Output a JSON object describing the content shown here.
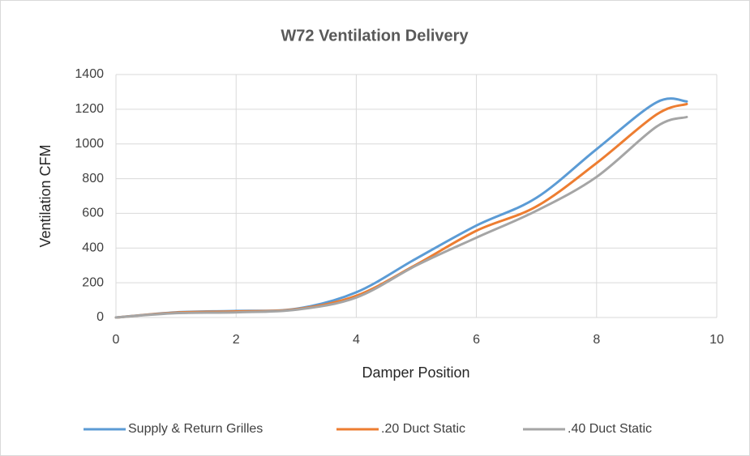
{
  "chart_data": {
    "type": "line",
    "title": "W72 Ventilation Delivery",
    "x_label": "Damper Position",
    "y_label": "Ventilation CFM",
    "x": [
      0,
      1,
      2,
      3,
      4,
      5,
      6,
      7,
      8,
      9,
      9.5
    ],
    "series": [
      {
        "name": "Supply & Return Grilles",
        "color": "#5b9bd5",
        "values": [
          0,
          30,
          38,
          50,
          145,
          340,
          530,
          690,
          970,
          1240,
          1245
        ]
      },
      {
        "name": ".20 Duct Static",
        "color": "#ed7d31",
        "values": [
          0,
          28,
          35,
          48,
          125,
          305,
          500,
          640,
          890,
          1170,
          1230
        ]
      },
      {
        "name": ".40 Duct Static",
        "color": "#a5a5a5",
        "values": [
          0,
          25,
          30,
          45,
          115,
          300,
          460,
          615,
          810,
          1100,
          1155
        ]
      }
    ],
    "xlim": [
      0,
      10
    ],
    "xticks": [
      0,
      2,
      4,
      6,
      8,
      10
    ],
    "ylim": [
      0,
      1400
    ],
    "yticks": [
      0,
      200,
      400,
      600,
      800,
      1000,
      1200,
      1400
    ],
    "grid": true,
    "legend": "bottom"
  }
}
